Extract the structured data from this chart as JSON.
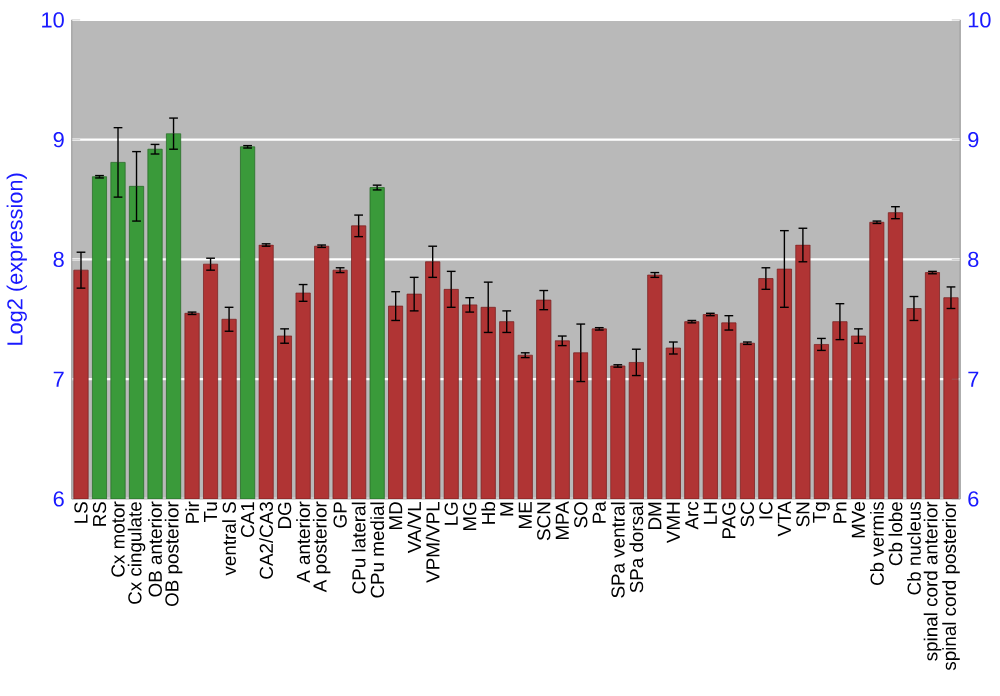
{
  "chart_data": {
    "type": "bar",
    "ylabel": "Log2 (expression)",
    "categories": [
      "LS",
      "RS",
      "Cx motor",
      "Cx cingulate",
      "OB anterior",
      "OB posterior",
      "Pir",
      "Tu",
      "ventral S",
      "CA1",
      "CA2/CA3",
      "DG",
      "A anterior",
      "A posterior",
      "GP",
      "CPu lateral",
      "CPu medial",
      "MD",
      "VA/VL",
      "VPM/VPL",
      "LG",
      "MG",
      "Hb",
      "M",
      "ME",
      "SCN",
      "MPA",
      "SO",
      "Pa",
      "SPa ventral",
      "SPa dorsal",
      "DM",
      "VMH",
      "Arc",
      "LH",
      "PAG",
      "SC",
      "IC",
      "VTA",
      "SN",
      "Tg",
      "Pn",
      "MVe",
      "Cb vermis",
      "Cb lobe",
      "Cb nucleus",
      "spinal cord anterior",
      "spinal cord posterior"
    ],
    "values": [
      7.91,
      8.69,
      8.81,
      8.61,
      8.92,
      9.05,
      7.55,
      7.96,
      7.5,
      8.94,
      8.12,
      7.36,
      7.72,
      8.11,
      7.91,
      8.28,
      8.6,
      7.61,
      7.71,
      7.98,
      7.75,
      7.62,
      7.6,
      7.48,
      7.2,
      7.66,
      7.32,
      7.22,
      7.42,
      7.11,
      7.14,
      7.87,
      7.26,
      7.48,
      7.54,
      7.47,
      7.3,
      7.84,
      7.92,
      8.12,
      7.29,
      7.48,
      7.36,
      8.31,
      8.39,
      7.59,
      7.89,
      7.68
    ],
    "errors": [
      0.15,
      0.01,
      0.29,
      0.29,
      0.04,
      0.13,
      0.01,
      0.05,
      0.1,
      0.01,
      0.01,
      0.06,
      0.07,
      0.01,
      0.02,
      0.09,
      0.02,
      0.12,
      0.14,
      0.13,
      0.15,
      0.06,
      0.21,
      0.09,
      0.02,
      0.08,
      0.04,
      0.24,
      0.01,
      0.01,
      0.11,
      0.02,
      0.05,
      0.01,
      0.01,
      0.06,
      0.01,
      0.09,
      0.32,
      0.14,
      0.05,
      0.15,
      0.06,
      0.01,
      0.05,
      0.1,
      0.01,
      0.09
    ],
    "colors": [
      "#b03434",
      "#3a9a3a",
      "#3a9a3a",
      "#3a9a3a",
      "#3a9a3a",
      "#3a9a3a",
      "#b03434",
      "#b03434",
      "#b03434",
      "#3a9a3a",
      "#b03434",
      "#b03434",
      "#b03434",
      "#b03434",
      "#b03434",
      "#b03434",
      "#3a9a3a",
      "#b03434",
      "#b03434",
      "#b03434",
      "#b03434",
      "#b03434",
      "#b03434",
      "#b03434",
      "#b03434",
      "#b03434",
      "#b03434",
      "#b03434",
      "#b03434",
      "#b03434",
      "#b03434",
      "#b03434",
      "#b03434",
      "#b03434",
      "#b03434",
      "#b03434",
      "#b03434",
      "#b03434",
      "#b03434",
      "#b03434",
      "#b03434",
      "#b03434",
      "#b03434",
      "#b03434",
      "#b03434",
      "#b03434",
      "#b03434",
      "#b03434"
    ],
    "ylim": [
      6,
      10
    ],
    "yticks": [
      6,
      7,
      8,
      9,
      10
    ],
    "y2lim": [
      6,
      10
    ],
    "y2ticks": [
      6,
      7,
      8,
      9,
      10
    ],
    "grid": "y"
  }
}
